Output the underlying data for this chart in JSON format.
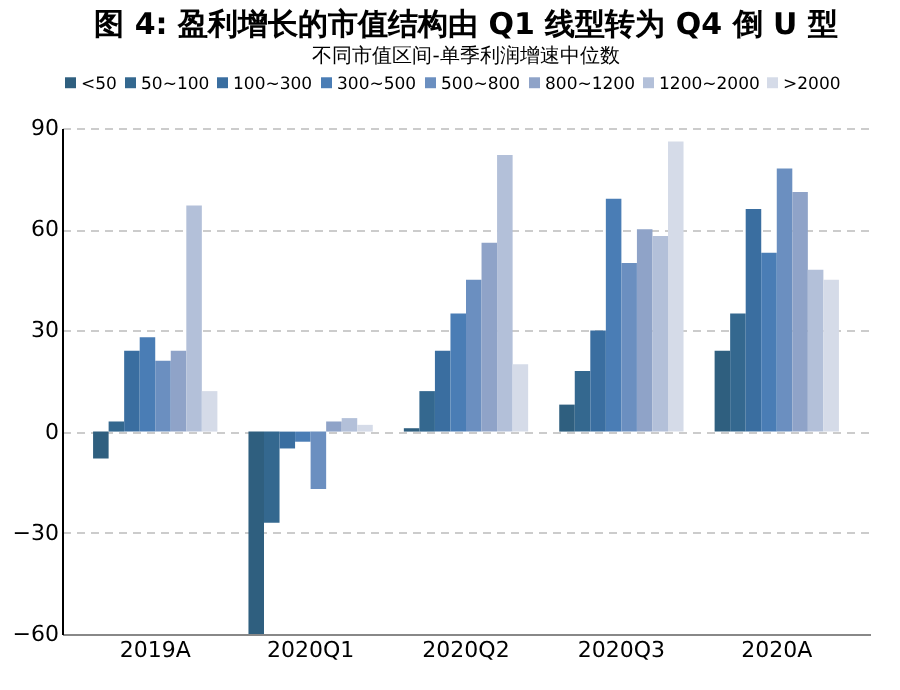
{
  "chart_data": {
    "type": "bar",
    "title": "图 4: 盈利增长的市值结构由 Q1 线型转为 Q4 倒 U 型",
    "subtitle": "不同市值区间-单季利润增速中位数",
    "categories": [
      "2019A",
      "2020Q1",
      "2020Q2",
      "2020Q3",
      "2020A"
    ],
    "series": [
      {
        "name": "<50",
        "color": "#2f5f7f",
        "values": [
          -8,
          -60,
          1,
          8,
          24
        ]
      },
      {
        "name": "50~100",
        "color": "#34688f",
        "values": [
          3,
          -27,
          12,
          18,
          35
        ]
      },
      {
        "name": "100~300",
        "color": "#3a6ea0",
        "values": [
          24,
          -5,
          24,
          30,
          66
        ]
      },
      {
        "name": "300~500",
        "color": "#4a7db5",
        "values": [
          28,
          -3,
          35,
          69,
          53
        ]
      },
      {
        "name": "500~800",
        "color": "#6b8fc0",
        "values": [
          21,
          -17,
          45,
          50,
          78
        ]
      },
      {
        "name": "800~1200",
        "color": "#8fa3c8",
        "values": [
          24,
          3,
          56,
          60,
          71
        ]
      },
      {
        "name": "1200~2000",
        "color": "#b3c0d9",
        "values": [
          67,
          4,
          82,
          58,
          48
        ]
      },
      {
        "name": ">2000",
        "color": "#d5dbe8",
        "values": [
          12,
          2,
          20,
          86,
          45
        ]
      }
    ],
    "ylim": [
      -60,
      90
    ],
    "yticks": [
      -60,
      -30,
      0,
      30,
      60,
      90
    ],
    "grid": "y",
    "legend": "top"
  }
}
